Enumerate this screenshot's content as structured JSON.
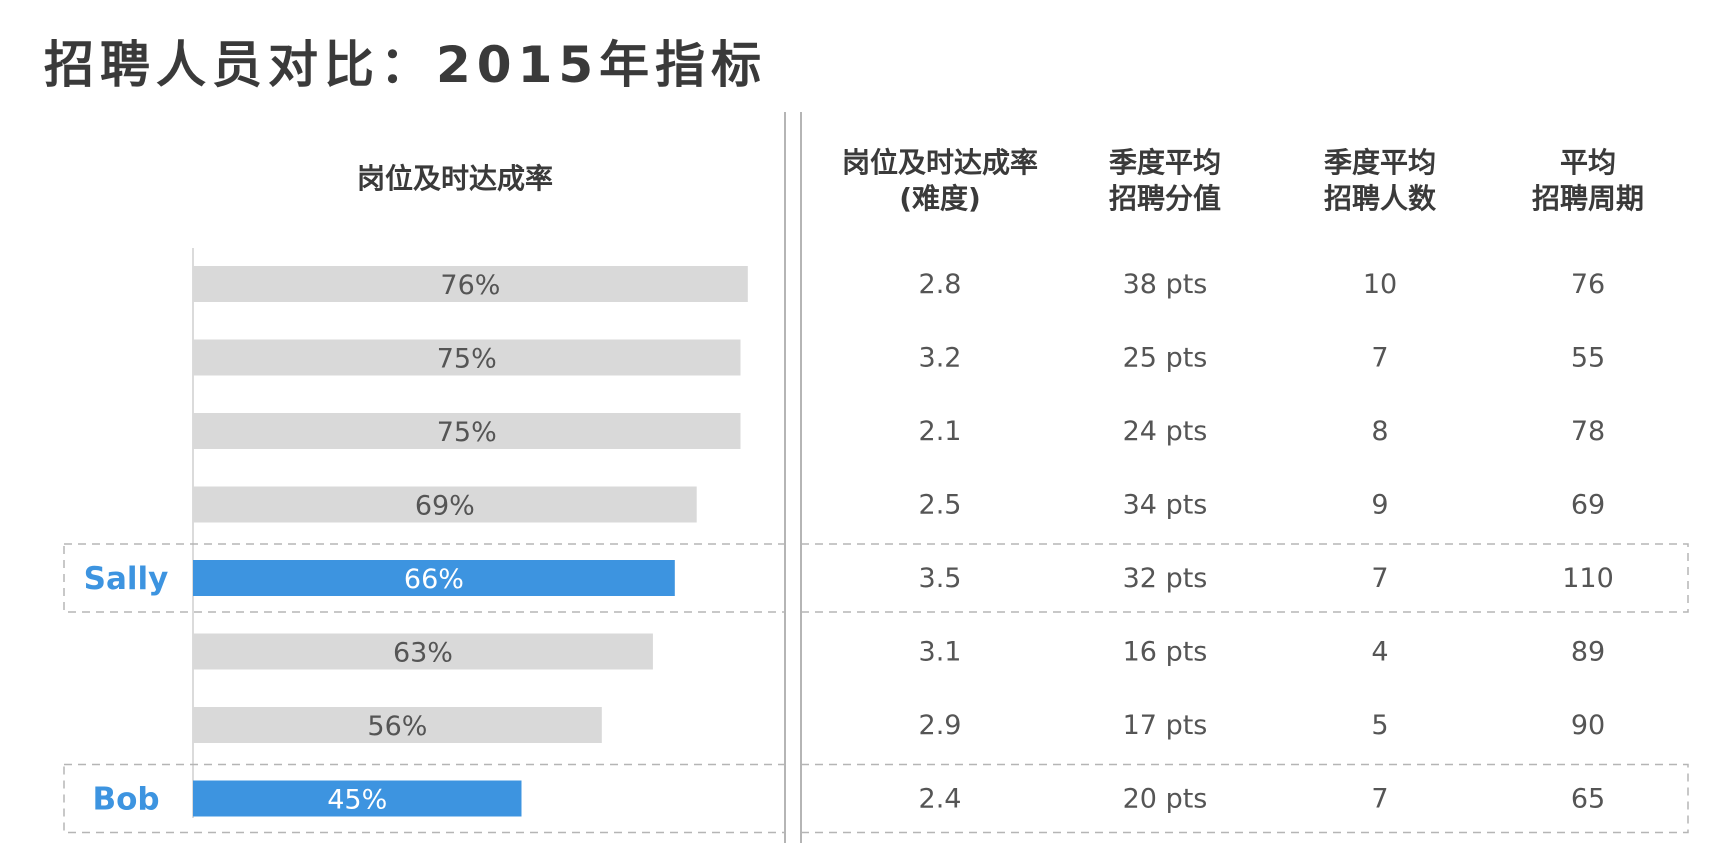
{
  "title": "招聘人员对比：2015年指标",
  "bar_header": "岗位及时达成率",
  "columns": [
    {
      "lines": [
        "岗位及时达成率",
        "(难度)"
      ]
    },
    {
      "lines": [
        "季度平均",
        "招聘分值"
      ]
    },
    {
      "lines": [
        "季度平均",
        "招聘人数"
      ]
    },
    {
      "lines": [
        "平均",
        "招聘周期"
      ]
    }
  ],
  "colors": {
    "bar_default": "#d9d9d9",
    "bar_highlight": "#3d94e0",
    "label_default": "#555555",
    "label_highlight": "#ffffff",
    "person_label": "#3d94e0"
  },
  "chart_data": {
    "type": "bar",
    "orientation": "horizontal",
    "xlim": [
      0,
      100
    ],
    "grid": false,
    "values": [
      76,
      75,
      75,
      69,
      66,
      63,
      56,
      45
    ],
    "bar_labels": [
      "76%",
      "75%",
      "75%",
      "69%",
      "66%",
      "63%",
      "56%",
      "45%"
    ],
    "row_labels": [
      "",
      "",
      "",
      "",
      "Sally",
      "",
      "",
      "Bob"
    ],
    "highlighted": [
      false,
      false,
      false,
      false,
      true,
      false,
      false,
      true
    ],
    "table": [
      [
        "2.8",
        "38 pts",
        "10",
        "76"
      ],
      [
        "3.2",
        "25 pts",
        "7",
        "55"
      ],
      [
        "2.1",
        "24 pts",
        "8",
        "78"
      ],
      [
        "2.5",
        "34 pts",
        "9",
        "69"
      ],
      [
        "3.5",
        "32 pts",
        "7",
        "110"
      ],
      [
        "3.1",
        "16 pts",
        "4",
        "89"
      ],
      [
        "2.9",
        "17 pts",
        "5",
        "90"
      ],
      [
        "2.4",
        "20 pts",
        "7",
        "65"
      ]
    ]
  }
}
